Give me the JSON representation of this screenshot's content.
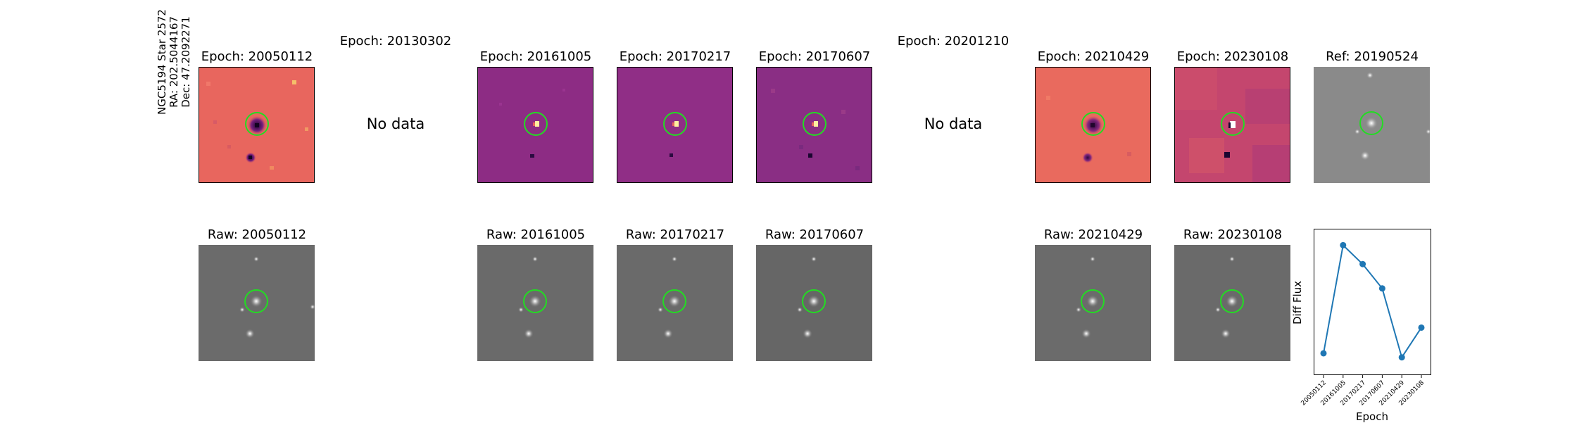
{
  "side_label": [
    "NGC5194 Star 2572",
    "RA: 202.5044167",
    "Dec: 47.2092271"
  ],
  "diff_titles": [
    "Epoch: 20050112",
    "Epoch: 20130302",
    "Epoch: 20161005",
    "Epoch: 20170217",
    "Epoch: 20170607",
    "Epoch: 20201210",
    "Epoch: 20210429",
    "Epoch: 20230108",
    "Ref: 20190524"
  ],
  "no_data": [
    "No data",
    "No data"
  ],
  "raw_titles": [
    "Raw: 20050112",
    "Raw: 20161005",
    "Raw: 20170217",
    "Raw: 20170607",
    "Raw: 20210429",
    "Raw: 20230108"
  ],
  "colors": {
    "marker_circle": "#22dd22",
    "magma_orange": "#e8665e",
    "magma_purple": "#8d2c84",
    "gray_bg": "#6a6a6a",
    "line": "#1f77b4"
  },
  "chart_data": {
    "type": "line",
    "x": [
      "20050112",
      "20161005",
      "20170217",
      "20170607",
      "20210429",
      "20230108"
    ],
    "y_relative": [
      0.12,
      0.92,
      0.78,
      0.6,
      0.09,
      0.31
    ],
    "xlabel": "Epoch",
    "ylabel": "Diff Flux",
    "marker": "circle"
  }
}
